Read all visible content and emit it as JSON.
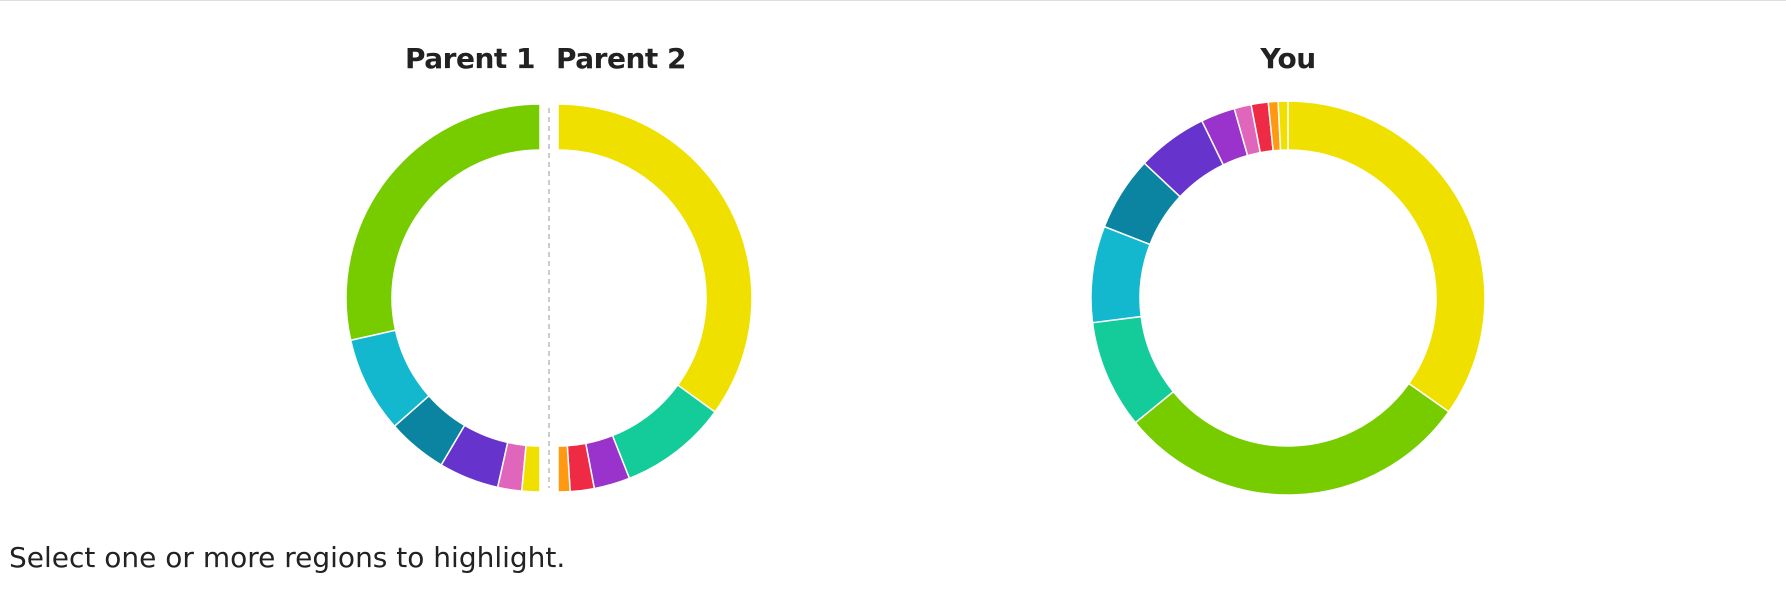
{
  "chart_data": [
    {
      "type": "half-donut",
      "title": "Parent 1",
      "side": "left",
      "values": [
        57,
        16,
        10,
        10,
        4,
        3
      ],
      "colors": [
        "#77cc00",
        "#13b8cf",
        "#0a84a0",
        "#6633cc",
        "#e066bb",
        "#f0e000"
      ]
    },
    {
      "type": "half-donut",
      "title": "Parent 2",
      "side": "right",
      "values": [
        70,
        18,
        6,
        4,
        2
      ],
      "colors": [
        "#f0e000",
        "#13cc99",
        "#9933cc",
        "#ee2a44",
        "#ff9911"
      ]
    },
    {
      "type": "donut",
      "title": "You",
      "values": [
        34.8,
        29.3,
        8.9,
        7.9,
        6.1,
        5.8,
        2.8,
        1.4,
        1.4,
        0.8,
        0.8
      ],
      "colors": [
        "#f0e000",
        "#77cc00",
        "#13cc99",
        "#13b8cf",
        "#0a84a0",
        "#6633cc",
        "#9933cc",
        "#e066bb",
        "#ee2a44",
        "#ff9911",
        "#f0e000"
      ]
    }
  ],
  "instructions": "Select one or more regions to highlight."
}
